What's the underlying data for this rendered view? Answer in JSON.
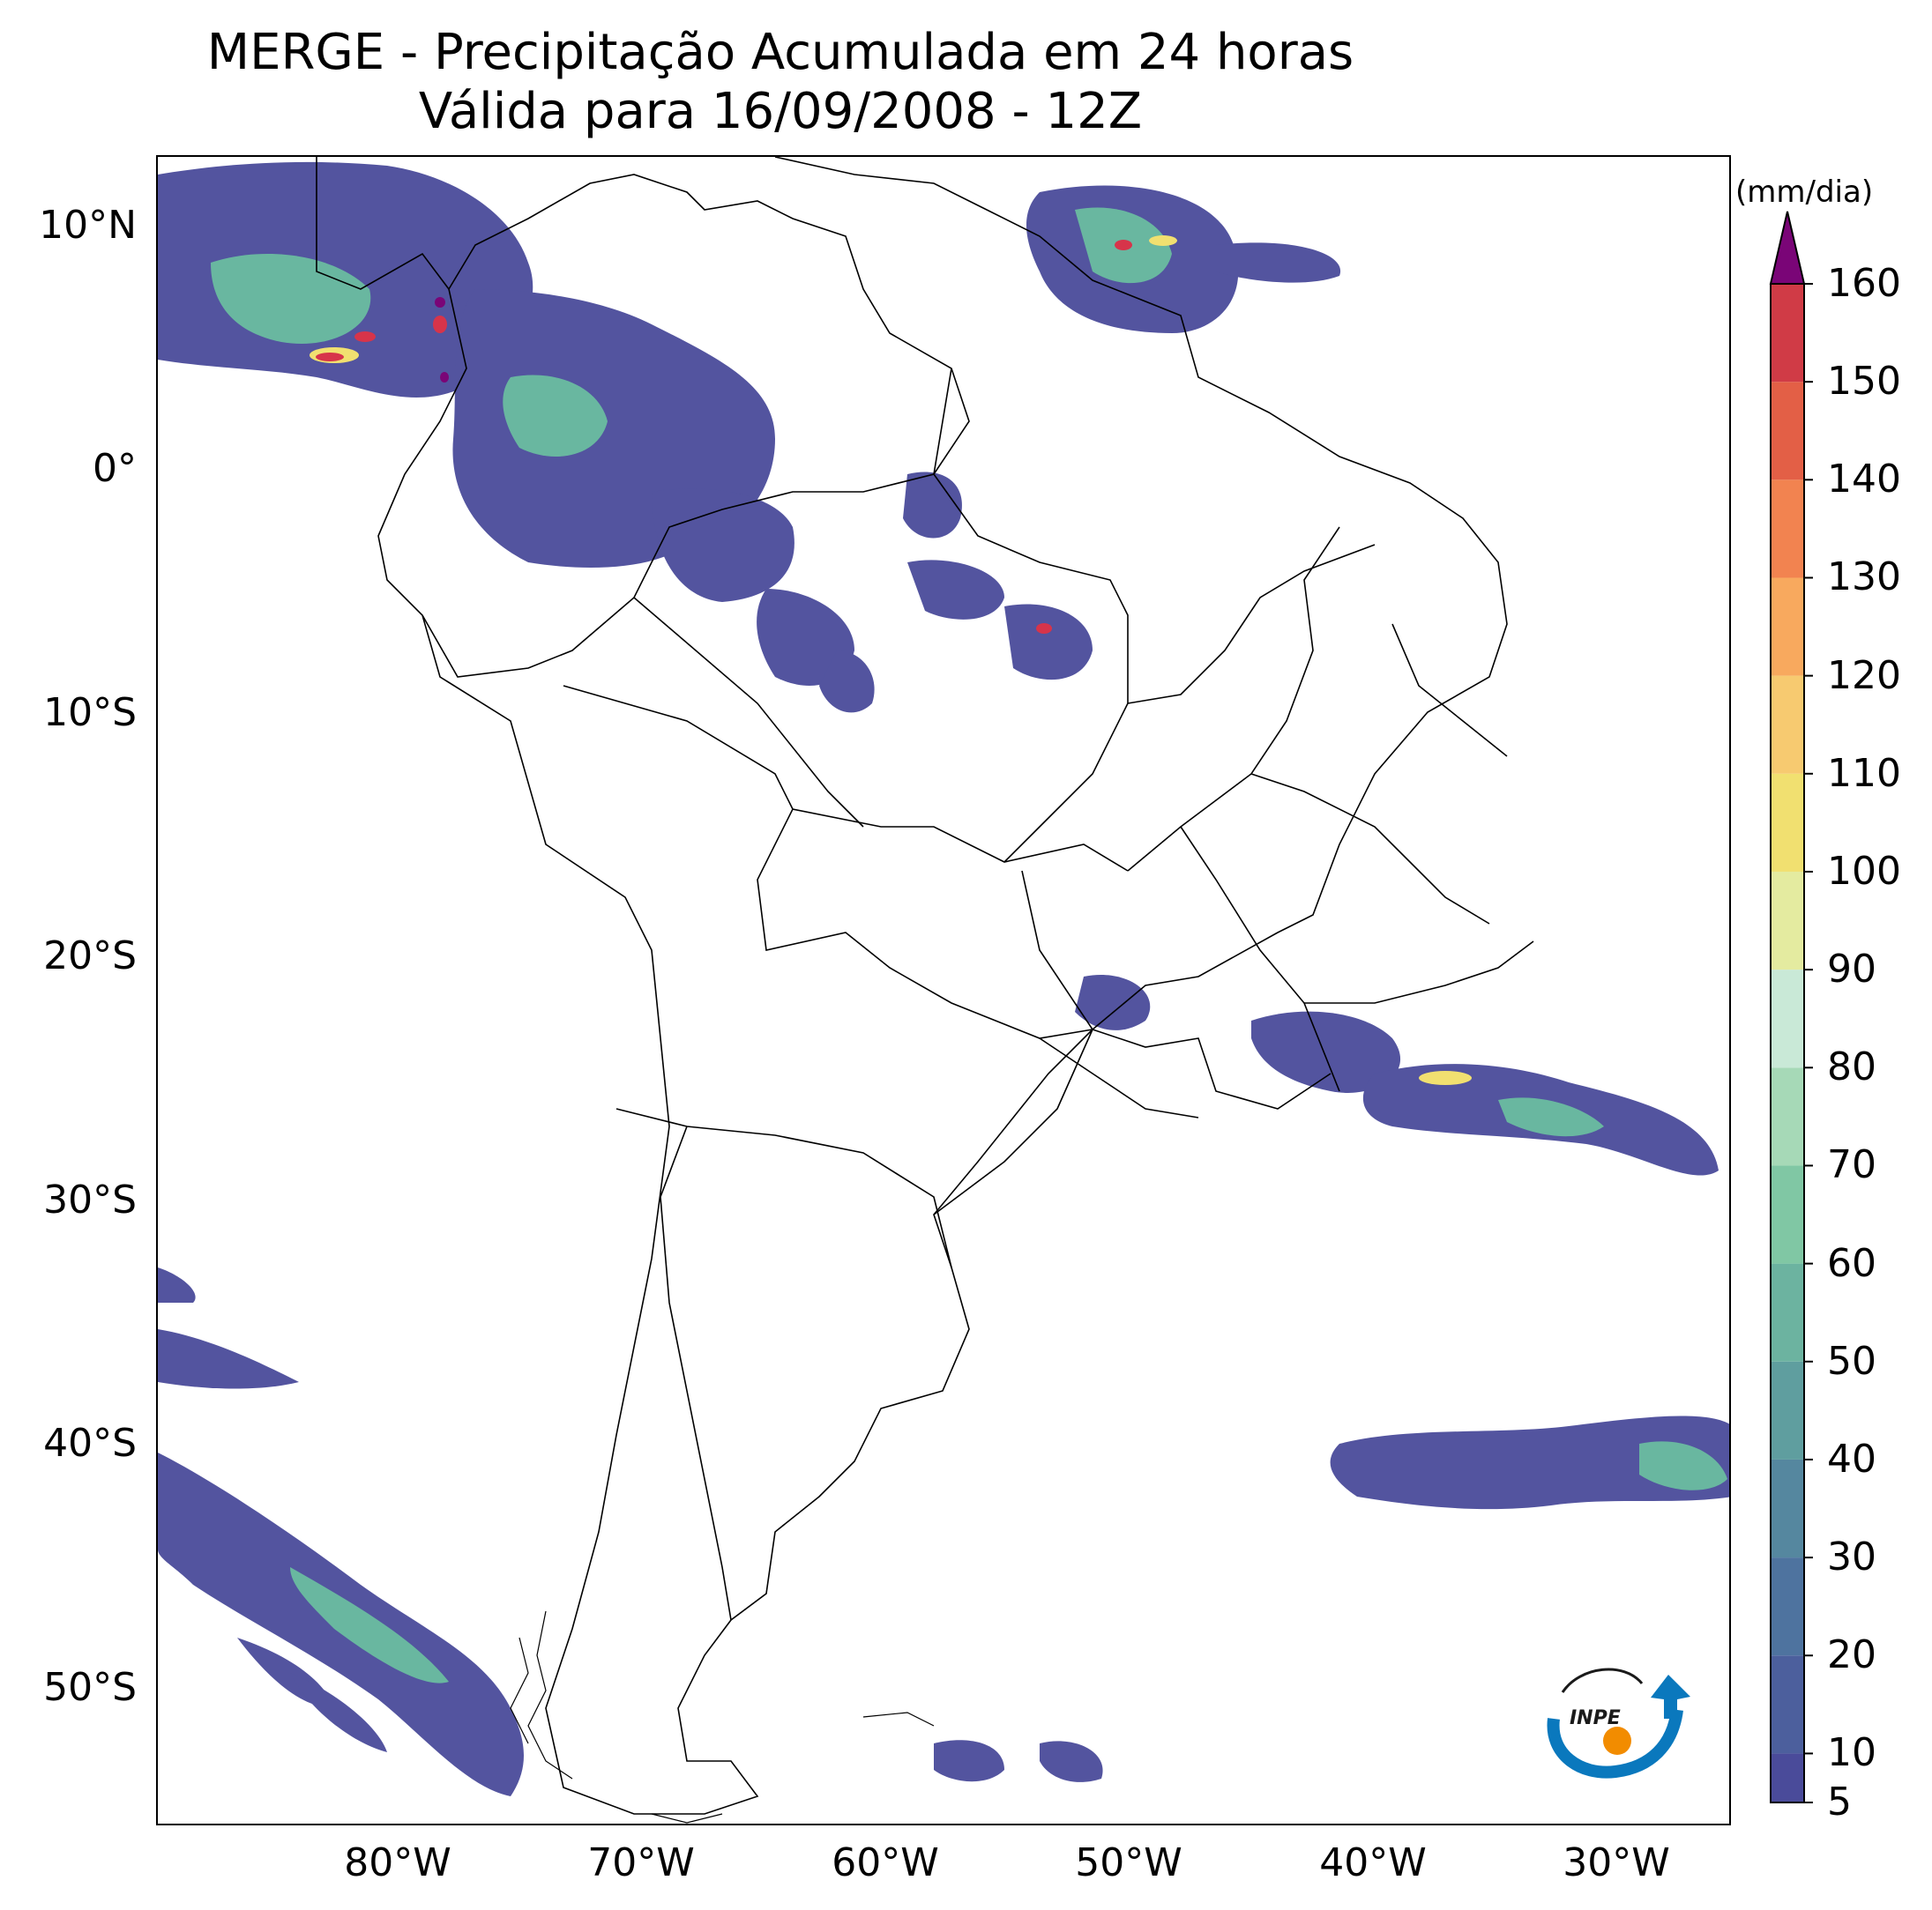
{
  "title": {
    "line1": "MERGE - Precipitação Acumulada em 24 horas",
    "line2": "Válida para 16/09/2008 - 12Z"
  },
  "map": {
    "lat_ticks": [
      "10°N",
      "0°",
      "10°S",
      "20°S",
      "30°S",
      "40°S",
      "50°S"
    ],
    "lon_ticks": [
      "80°W",
      "70°W",
      "60°W",
      "50°W",
      "40°W",
      "30°W"
    ],
    "colors": {
      "background": "#ffffff",
      "land": "#ffffff",
      "borders": "#000000",
      "precip_low": "#4a4b9a",
      "precip_mid": "#6cc2a0",
      "precip_high": "#d7344a"
    }
  },
  "colorbar": {
    "unit": "(mm/dia)",
    "tick_labels": [
      "5",
      "10",
      "20",
      "30",
      "40",
      "50",
      "60",
      "70",
      "80",
      "90",
      "100",
      "110",
      "120",
      "130",
      "140",
      "150",
      "160"
    ],
    "levels": [
      5,
      10,
      20,
      30,
      40,
      50,
      60,
      70,
      80,
      90,
      100,
      110,
      120,
      130,
      140,
      150,
      160
    ],
    "extend": "max",
    "colors": [
      "#4a4b9a",
      "#4c5f9d",
      "#4e739f",
      "#55879f",
      "#5f9e9f",
      "#6cb3a0",
      "#80c7a4",
      "#a6d9b7",
      "#c9e9d7",
      "#e4eba0",
      "#f1e070",
      "#f7ca70",
      "#f8a95e",
      "#f28350",
      "#e35f46",
      "#d03b46",
      "#b42145"
    ],
    "extend_color": "#7a0577"
  },
  "logo": {
    "text": "INPE",
    "colors": [
      "#0a78bd",
      "#f28c00",
      "#1a1a1a"
    ]
  }
}
